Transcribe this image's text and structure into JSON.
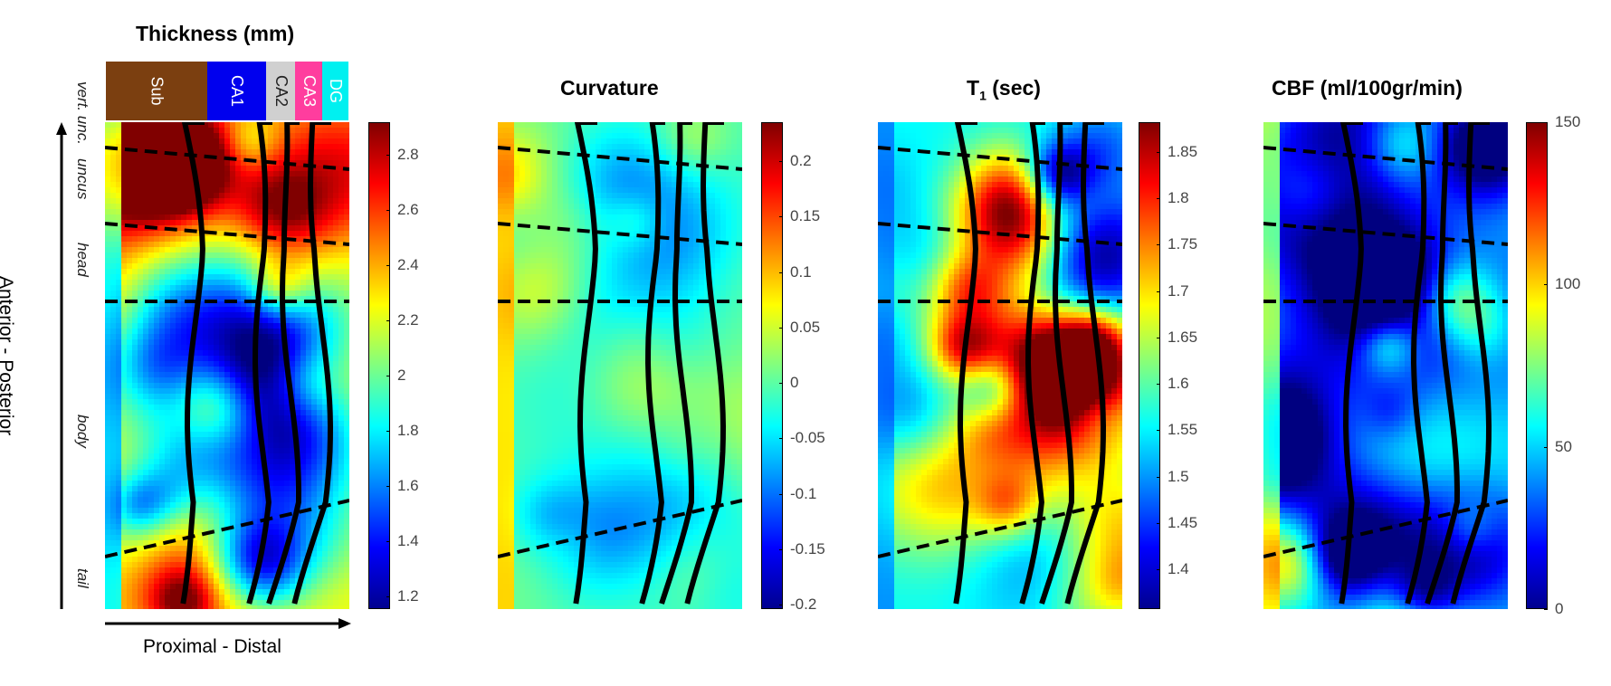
{
  "titles": {
    "thickness": "Thickness (mm)",
    "curvature": "Curvature",
    "t1_main": "T",
    "t1_sub": "1",
    "t1_rest": " (sec)",
    "cbf": "CBF (ml/100gr/min)"
  },
  "regions": [
    "Sub",
    "CA1",
    "CA2",
    "CA3",
    "DG"
  ],
  "region_colors": [
    "#7b3f10",
    "#0000ee",
    "#d0d0d0",
    "#ff3d9e",
    "#00f0f0"
  ],
  "row_labels": [
    "vert. unc.",
    "uncus",
    "head",
    "body",
    "tail"
  ],
  "axes": {
    "vertical": "Anterior - Posterior",
    "horizontal": "Proximal - Distal"
  },
  "colorbars": {
    "thickness": [
      "2.8",
      "2.6",
      "2.4",
      "2.2",
      "2",
      "1.8",
      "1.6",
      "1.4",
      "1.2"
    ],
    "curvature": [
      "0.2",
      "0.15",
      "0.1",
      "0.05",
      "0",
      "-0.05",
      "-0.1",
      "-0.15",
      "-0.2"
    ],
    "t1": [
      "1.85",
      "1.8",
      "1.75",
      "1.7",
      "1.65",
      "1.6",
      "1.55",
      "1.5",
      "1.45",
      "1.4"
    ],
    "cbf": [
      "150",
      "100",
      "50",
      "0"
    ]
  }
}
